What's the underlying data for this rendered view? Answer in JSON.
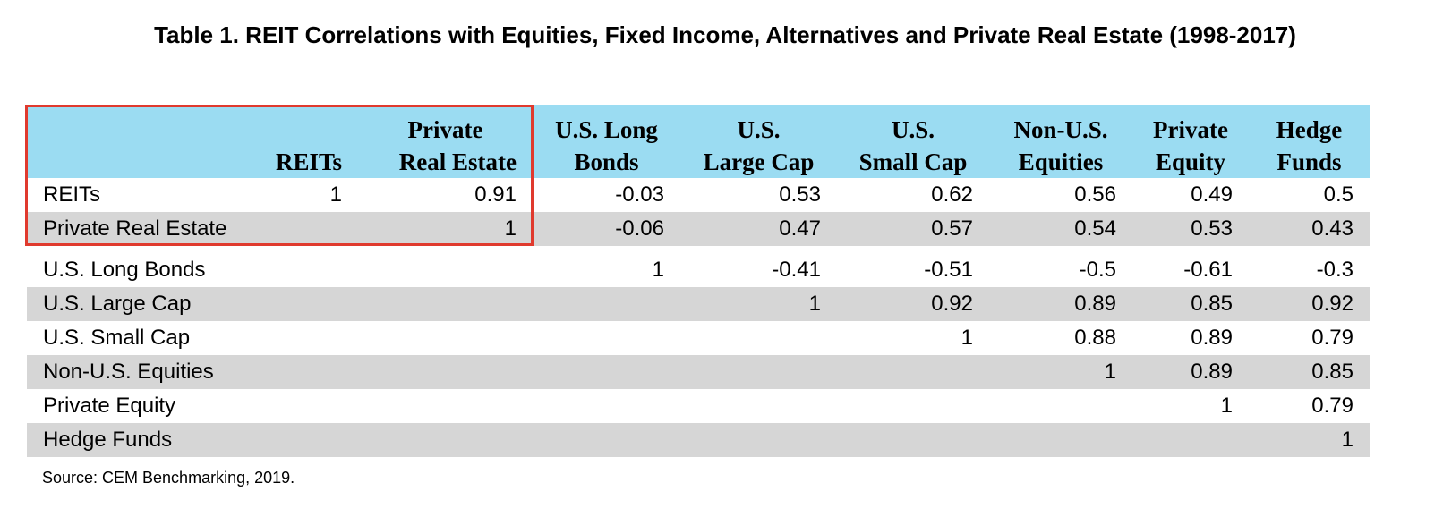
{
  "title": "Table 1. REIT Correlations with Equities, Fixed Income, Alternatives and Private Real Estate (1998-2017)",
  "columns": [
    {
      "line1": "",
      "line2": "REITs"
    },
    {
      "line1": "Private",
      "line2": "Real Estate"
    },
    {
      "line1": "U.S. Long",
      "line2": "Bonds"
    },
    {
      "line1": "U.S.",
      "line2": "Large Cap"
    },
    {
      "line1": "U.S.",
      "line2": "Small Cap"
    },
    {
      "line1": "Non-U.S.",
      "line2": "Equities"
    },
    {
      "line1": "Private",
      "line2": "Equity"
    },
    {
      "line1": "Hedge",
      "line2": "Funds"
    }
  ],
  "rows": [
    {
      "label": "REITs",
      "values": [
        "1",
        "0.91",
        "-0.03",
        "0.53",
        "0.62",
        "0.56",
        "0.49",
        "0.5"
      ]
    },
    {
      "label": "Private Real Estate",
      "values": [
        "",
        "1",
        "-0.06",
        "0.47",
        "0.57",
        "0.54",
        "0.53",
        "0.43"
      ]
    },
    {
      "label": "U.S. Long Bonds",
      "values": [
        "",
        "",
        "1",
        "-0.41",
        "-0.51",
        "-0.5",
        "-0.61",
        "-0.3"
      ]
    },
    {
      "label": "U.S. Large Cap",
      "values": [
        "",
        "",
        "",
        "1",
        "0.92",
        "0.89",
        "0.85",
        "0.92"
      ]
    },
    {
      "label": "U.S. Small Cap",
      "values": [
        "",
        "",
        "",
        "",
        "1",
        "0.88",
        "0.89",
        "0.79"
      ]
    },
    {
      "label": "Non-U.S. Equities",
      "values": [
        "",
        "",
        "",
        "",
        "",
        "1",
        "0.89",
        "0.85"
      ]
    },
    {
      "label": "Private Equity",
      "values": [
        "",
        "",
        "",
        "",
        "",
        "",
        "1",
        "0.79"
      ]
    },
    {
      "label": "Hedge Funds",
      "values": [
        "",
        "",
        "",
        "",
        "",
        "",
        "",
        "1"
      ]
    }
  ],
  "source": "Source: CEM Benchmarking, 2019.",
  "colors": {
    "header_bg": "#9bdcf2",
    "row_shade": "#d6d6d6",
    "highlight_border": "#e03a2e"
  }
}
